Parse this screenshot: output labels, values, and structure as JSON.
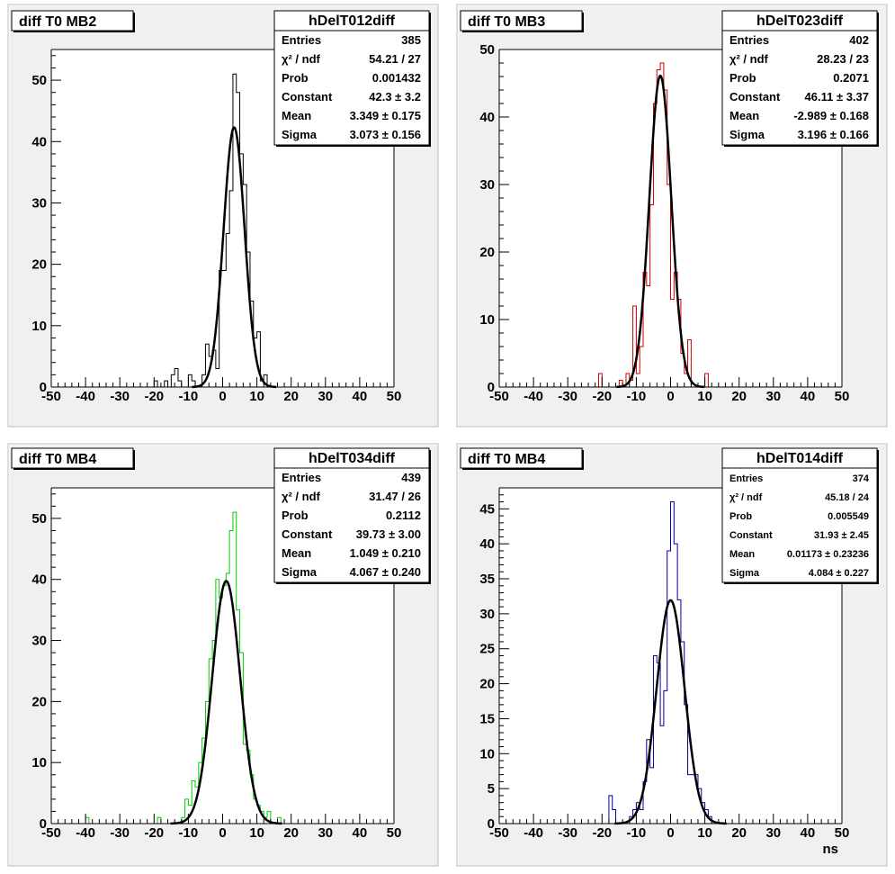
{
  "colors": {
    "canvas_bg": "#ffffff",
    "pad_bg": "#f0f0f0",
    "frame_bg": "#ffffff",
    "axis": "#000000",
    "fit": "#000000"
  },
  "chart_data": [
    {
      "type": "histogram",
      "title": "diff T0 MB2",
      "stats": {
        "name": "hDelT012diff",
        "rows": [
          {
            "label": "Entries",
            "value": "385"
          },
          {
            "label": "χ² / ndf",
            "value": "54.21 / 27"
          },
          {
            "label": "Prob",
            "value": "0.001432"
          },
          {
            "label": "Constant",
            "value": "42.3 ± 3.2"
          },
          {
            "label": "Mean",
            "value": "3.349 ± 0.175"
          },
          {
            "label": "Sigma",
            "value": "3.073 ± 0.156"
          }
        ]
      },
      "xlim": [
        -50,
        50
      ],
      "ylim": [
        0,
        55
      ],
      "xticks": [
        -50,
        -40,
        -30,
        -20,
        -10,
        0,
        10,
        20,
        30,
        40,
        50
      ],
      "yticks": [
        0,
        10,
        20,
        30,
        40,
        50
      ],
      "xlabel": "",
      "line_color": "#000000",
      "hist": [
        {
          "x": -21,
          "y": 0
        },
        {
          "x": -20,
          "y": 1
        },
        {
          "x": -19,
          "y": 0
        },
        {
          "x": -17,
          "y": 1
        },
        {
          "x": -16,
          "y": 0
        },
        {
          "x": -15,
          "y": 2
        },
        {
          "x": -14,
          "y": 3
        },
        {
          "x": -13,
          "y": 1
        },
        {
          "x": -12,
          "y": 0
        },
        {
          "x": -10,
          "y": 2
        },
        {
          "x": -9,
          "y": 1
        },
        {
          "x": -8,
          "y": 0
        },
        {
          "x": -6,
          "y": 2
        },
        {
          "x": -5,
          "y": 7
        },
        {
          "x": -4,
          "y": 5
        },
        {
          "x": -3,
          "y": 6
        },
        {
          "x": -2,
          "y": 3
        },
        {
          "x": -1,
          "y": 19
        },
        {
          "x": 0,
          "y": 19
        },
        {
          "x": 1,
          "y": 25
        },
        {
          "x": 2,
          "y": 32
        },
        {
          "x": 3,
          "y": 51
        },
        {
          "x": 4,
          "y": 48
        },
        {
          "x": 5,
          "y": 38
        },
        {
          "x": 6,
          "y": 33
        },
        {
          "x": 7,
          "y": 22
        },
        {
          "x": 8,
          "y": 14
        },
        {
          "x": 9,
          "y": 8
        },
        {
          "x": 10,
          "y": 9
        },
        {
          "x": 11,
          "y": 1
        },
        {
          "x": 12,
          "y": 2
        },
        {
          "x": 13,
          "y": 0
        }
      ],
      "fit": {
        "constant": 42.3,
        "mean": 3.349,
        "sigma": 3.073
      }
    },
    {
      "type": "histogram",
      "title": "diff T0 MB3",
      "stats": {
        "name": "hDelT023diff",
        "rows": [
          {
            "label": "Entries",
            "value": "402"
          },
          {
            "label": "χ² / ndf",
            "value": "28.23 / 23"
          },
          {
            "label": "Prob",
            "value": "0.2071"
          },
          {
            "label": "Constant",
            "value": "46.11 ± 3.37"
          },
          {
            "label": "Mean",
            "value": "-2.989 ± 0.168"
          },
          {
            "label": "Sigma",
            "value": "3.196 ± 0.166"
          }
        ]
      },
      "xlim": [
        -50,
        50
      ],
      "ylim": [
        0,
        50
      ],
      "xticks": [
        -50,
        -40,
        -30,
        -20,
        -10,
        0,
        10,
        20,
        30,
        40,
        50
      ],
      "yticks": [
        0,
        10,
        20,
        30,
        40,
        50
      ],
      "xlabel": "",
      "line_color": "#cc0000",
      "hist": [
        {
          "x": -22,
          "y": 0
        },
        {
          "x": -21,
          "y": 2
        },
        {
          "x": -20,
          "y": 0
        },
        {
          "x": -15,
          "y": 1
        },
        {
          "x": -14,
          "y": 0
        },
        {
          "x": -13,
          "y": 2
        },
        {
          "x": -12,
          "y": 1
        },
        {
          "x": -11,
          "y": 12
        },
        {
          "x": -10,
          "y": 2
        },
        {
          "x": -9,
          "y": 6
        },
        {
          "x": -8,
          "y": 17
        },
        {
          "x": -7,
          "y": 15
        },
        {
          "x": -6,
          "y": 27
        },
        {
          "x": -5,
          "y": 42
        },
        {
          "x": -4,
          "y": 47
        },
        {
          "x": -3,
          "y": 48
        },
        {
          "x": -2,
          "y": 44
        },
        {
          "x": -1,
          "y": 30
        },
        {
          "x": 0,
          "y": 13
        },
        {
          "x": 1,
          "y": 17
        },
        {
          "x": 2,
          "y": 13
        },
        {
          "x": 3,
          "y": 5
        },
        {
          "x": 4,
          "y": 2
        },
        {
          "x": 5,
          "y": 7
        },
        {
          "x": 6,
          "y": 0
        },
        {
          "x": 10,
          "y": 2
        },
        {
          "x": 11,
          "y": 0
        }
      ],
      "fit": {
        "constant": 46.11,
        "mean": -2.989,
        "sigma": 3.196
      }
    },
    {
      "type": "histogram",
      "title": "diff T0 MB4",
      "stats": {
        "name": "hDelT034diff",
        "rows": [
          {
            "label": "Entries",
            "value": "439"
          },
          {
            "label": "χ² / ndf",
            "value": "31.47 / 26"
          },
          {
            "label": "Prob",
            "value": "0.2112"
          },
          {
            "label": "Constant",
            "value": "39.73 ± 3.00"
          },
          {
            "label": "Mean",
            "value": "1.049 ± 0.210"
          },
          {
            "label": "Sigma",
            "value": "4.067 ± 0.240"
          }
        ]
      },
      "xlim": [
        -50,
        50
      ],
      "ylim": [
        0,
        55
      ],
      "xticks": [
        -50,
        -40,
        -30,
        -20,
        -10,
        0,
        10,
        20,
        30,
        40,
        50
      ],
      "yticks": [
        0,
        10,
        20,
        30,
        40,
        50
      ],
      "xlabel": "",
      "line_color": "#00cc00",
      "hist": [
        {
          "x": -41,
          "y": 0
        },
        {
          "x": -40,
          "y": 1
        },
        {
          "x": -39,
          "y": 0
        },
        {
          "x": -19,
          "y": 1
        },
        {
          "x": -18,
          "y": 0
        },
        {
          "x": -12,
          "y": 1
        },
        {
          "x": -11,
          "y": 4
        },
        {
          "x": -10,
          "y": 3
        },
        {
          "x": -9,
          "y": 7
        },
        {
          "x": -8,
          "y": 6
        },
        {
          "x": -7,
          "y": 10
        },
        {
          "x": -6,
          "y": 14
        },
        {
          "x": -5,
          "y": 20
        },
        {
          "x": -4,
          "y": 27
        },
        {
          "x": -3,
          "y": 30
        },
        {
          "x": -2,
          "y": 40
        },
        {
          "x": -1,
          "y": 37
        },
        {
          "x": 0,
          "y": 39
        },
        {
          "x": 1,
          "y": 41
        },
        {
          "x": 2,
          "y": 48
        },
        {
          "x": 3,
          "y": 51
        },
        {
          "x": 4,
          "y": 35
        },
        {
          "x": 5,
          "y": 28
        },
        {
          "x": 6,
          "y": 13
        },
        {
          "x": 7,
          "y": 12
        },
        {
          "x": 8,
          "y": 8
        },
        {
          "x": 9,
          "y": 4
        },
        {
          "x": 10,
          "y": 3
        },
        {
          "x": 11,
          "y": 2
        },
        {
          "x": 12,
          "y": 1
        },
        {
          "x": 13,
          "y": 2
        },
        {
          "x": 14,
          "y": 0
        },
        {
          "x": 16,
          "y": 1
        },
        {
          "x": 17,
          "y": 0
        }
      ],
      "fit": {
        "constant": 39.73,
        "mean": 1.049,
        "sigma": 4.067
      }
    },
    {
      "type": "histogram",
      "title": "diff T0 MB4",
      "stats": {
        "name": "hDelT014diff",
        "rows": [
          {
            "label": "Entries",
            "value": "374"
          },
          {
            "label": "χ² / ndf",
            "value": "45.18 / 24"
          },
          {
            "label": "Prob",
            "value": "0.005549"
          },
          {
            "label": "Constant",
            "value": "31.93 ± 2.45"
          },
          {
            "label": "Mean",
            "value": "0.01173 ± 0.23236"
          },
          {
            "label": "Sigma",
            "value": "4.084 ± 0.227"
          }
        ]
      },
      "xlim": [
        -50,
        50
      ],
      "ylim": [
        0,
        48
      ],
      "xticks": [
        -50,
        -40,
        -30,
        -20,
        -10,
        0,
        10,
        20,
        30,
        40,
        50
      ],
      "yticks": [
        0,
        5,
        10,
        15,
        20,
        25,
        30,
        35,
        40,
        45
      ],
      "xlabel": "ns",
      "line_color": "#000099",
      "hist": [
        {
          "x": -19,
          "y": 0
        },
        {
          "x": -18,
          "y": 4
        },
        {
          "x": -17,
          "y": 2
        },
        {
          "x": -16,
          "y": 0
        },
        {
          "x": -12,
          "y": 1
        },
        {
          "x": -11,
          "y": 2
        },
        {
          "x": -10,
          "y": 3
        },
        {
          "x": -9,
          "y": 2
        },
        {
          "x": -8,
          "y": 6
        },
        {
          "x": -7,
          "y": 12
        },
        {
          "x": -6,
          "y": 8
        },
        {
          "x": -5,
          "y": 24
        },
        {
          "x": -4,
          "y": 23
        },
        {
          "x": -3,
          "y": 14
        },
        {
          "x": -2,
          "y": 19
        },
        {
          "x": -1,
          "y": 39
        },
        {
          "x": 0,
          "y": 46
        },
        {
          "x": 1,
          "y": 40
        },
        {
          "x": 2,
          "y": 32
        },
        {
          "x": 3,
          "y": 26
        },
        {
          "x": 4,
          "y": 17
        },
        {
          "x": 5,
          "y": 7
        },
        {
          "x": 6,
          "y": 7
        },
        {
          "x": 7,
          "y": 7
        },
        {
          "x": 8,
          "y": 5
        },
        {
          "x": 9,
          "y": 3
        },
        {
          "x": 10,
          "y": 2
        },
        {
          "x": 11,
          "y": 1
        },
        {
          "x": 12,
          "y": 0
        }
      ],
      "fit": {
        "constant": 31.93,
        "mean": 0.01173,
        "sigma": 4.084
      }
    }
  ]
}
